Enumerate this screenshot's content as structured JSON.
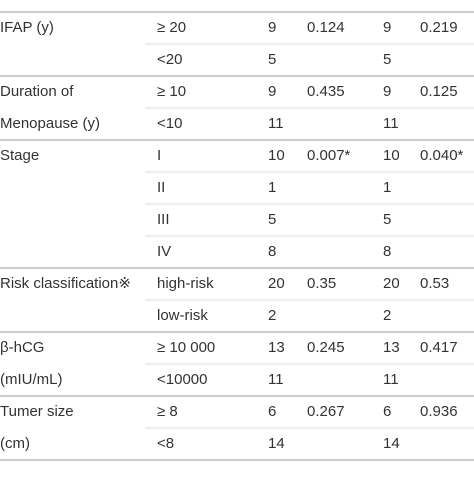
{
  "table": {
    "rows": [
      {
        "variable": "IFAP (y)",
        "group": "≥ 20",
        "n1": 9,
        "p1": 0.124,
        "n2": 9,
        "p2": 0.219
      },
      {
        "group": "<20",
        "n1": 5,
        "n2": 5
      },
      {
        "variable": "Duration of",
        "group": "≥ 10",
        "n1": 9,
        "p1": 0.435,
        "n2": 9,
        "p2": 0.125
      },
      {
        "variable": "Menopause (y)",
        "group": "<10",
        "n1": 11,
        "n2": 11
      },
      {
        "variable": "Stage",
        "group": "I",
        "n1": 10,
        "p1": "0.007*",
        "n2": 10,
        "p2": "0.040*"
      },
      {
        "group": "II",
        "n1": 1,
        "n2": 1
      },
      {
        "group": "III",
        "n1": 5,
        "n2": 5
      },
      {
        "group": "IV",
        "n1": 8,
        "n2": 8
      },
      {
        "variable": "Risk classification※",
        "group": "high-risk",
        "n1": 20,
        "p1": 0.35,
        "n2": 20,
        "p2": 0.53
      },
      {
        "group": "low-risk",
        "n1": 2,
        "n2": 2
      },
      {
        "variable": "β-hCG",
        "group": "≥ 10 000",
        "n1": 13,
        "p1": 0.245,
        "n2": 13,
        "p2": 0.417
      },
      {
        "variable": "(mIU/mL)",
        "group": "<10000",
        "n1": 11,
        "n2": 11
      },
      {
        "variable": "Tumer size",
        "group": "≥ 8",
        "n1": 6,
        "p1": 0.267,
        "n2": 6,
        "p2": 0.936
      },
      {
        "variable": "(cm)",
        "group": "<8",
        "n1": 14,
        "n2": 14
      }
    ]
  }
}
